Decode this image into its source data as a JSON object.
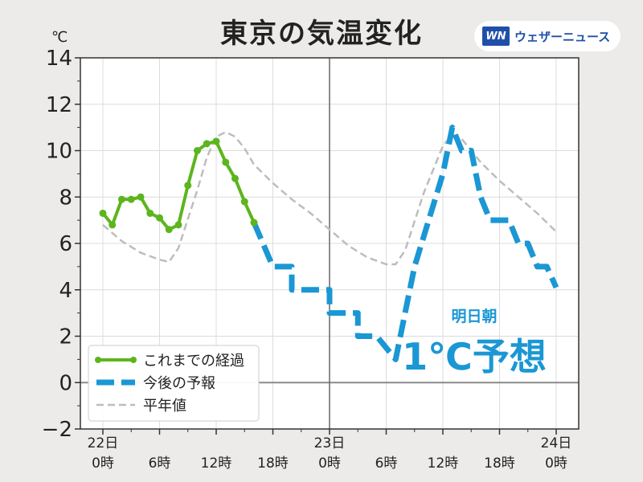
{
  "title": "東京の気温変化",
  "unit": "℃",
  "brand": {
    "name": "ウェザーニュース",
    "mark": "WN"
  },
  "annotation": {
    "line1": "明日朝",
    "line2": "1℃予想"
  },
  "colors": {
    "observed": "#5cb51d",
    "forecast": "#1a97d4",
    "normal": "#bdbdbd",
    "annotation": "#1a97d4"
  },
  "chart_data": {
    "type": "line",
    "title": "東京の気温変化",
    "ylabel": "℃",
    "ylim": [
      -2,
      14
    ],
    "xlim": [
      0,
      48
    ],
    "yticks": [
      -2,
      0,
      2,
      4,
      6,
      8,
      10,
      12,
      14
    ],
    "grid": true,
    "legend_position": "bottom-left",
    "xtick_labels": [
      {
        "h": 0,
        "top": "22日",
        "bottom": "0時"
      },
      {
        "h": 6,
        "top": "",
        "bottom": "6時"
      },
      {
        "h": 12,
        "top": "",
        "bottom": "12時"
      },
      {
        "h": 18,
        "top": "",
        "bottom": "18時"
      },
      {
        "h": 24,
        "top": "23日",
        "bottom": "0時"
      },
      {
        "h": 30,
        "top": "",
        "bottom": "6時"
      },
      {
        "h": 36,
        "top": "",
        "bottom": "12時"
      },
      {
        "h": 42,
        "top": "",
        "bottom": "18時"
      },
      {
        "h": 48,
        "top": "24日",
        "bottom": "0時"
      }
    ],
    "series": [
      {
        "name": "これまでの経過",
        "style": "solid-markers",
        "x": [
          0,
          1,
          2,
          3,
          4,
          5,
          6,
          7,
          8,
          9,
          10,
          11,
          12,
          13,
          14,
          15,
          16
        ],
        "y": [
          7.3,
          6.8,
          7.9,
          7.9,
          8.0,
          7.3,
          7.1,
          6.6,
          6.8,
          8.5,
          10.0,
          10.3,
          10.4,
          9.5,
          8.8,
          7.8,
          6.9
        ]
      },
      {
        "name": "今後の予報",
        "style": "dashed-step",
        "x": [
          16,
          18,
          18,
          20,
          20,
          22,
          22,
          24,
          24,
          25,
          25,
          27,
          27,
          29,
          29,
          31,
          33,
          36,
          37,
          38,
          39,
          40,
          41,
          42,
          43,
          44,
          45,
          46,
          47,
          48
        ],
        "y": [
          6.9,
          5.0,
          5.0,
          5.0,
          4.0,
          4.0,
          4.0,
          4.0,
          3.0,
          3.0,
          3.0,
          3.0,
          2.0,
          2.0,
          2.0,
          1.0,
          5.0,
          9.0,
          11.0,
          10.0,
          10.0,
          8.0,
          7.0,
          7.0,
          7.0,
          6.0,
          6.0,
          5.0,
          5.0,
          4.1
        ]
      },
      {
        "name": "平年値",
        "style": "dashed",
        "x": [
          0,
          2,
          4,
          6,
          7,
          8,
          10,
          11,
          12,
          13,
          14,
          15,
          16,
          18,
          20,
          22,
          24,
          26,
          28,
          30,
          31,
          32,
          34,
          36,
          37,
          38,
          40,
          42,
          44,
          46,
          48
        ],
        "y": [
          6.8,
          6.1,
          5.6,
          5.3,
          5.2,
          5.8,
          8.3,
          9.7,
          10.6,
          10.8,
          10.6,
          10.1,
          9.4,
          8.6,
          7.9,
          7.3,
          6.6,
          5.9,
          5.4,
          5.1,
          5.1,
          5.7,
          8.2,
          10.2,
          10.7,
          10.5,
          9.5,
          8.7,
          8.0,
          7.3,
          6.5
        ]
      }
    ]
  }
}
